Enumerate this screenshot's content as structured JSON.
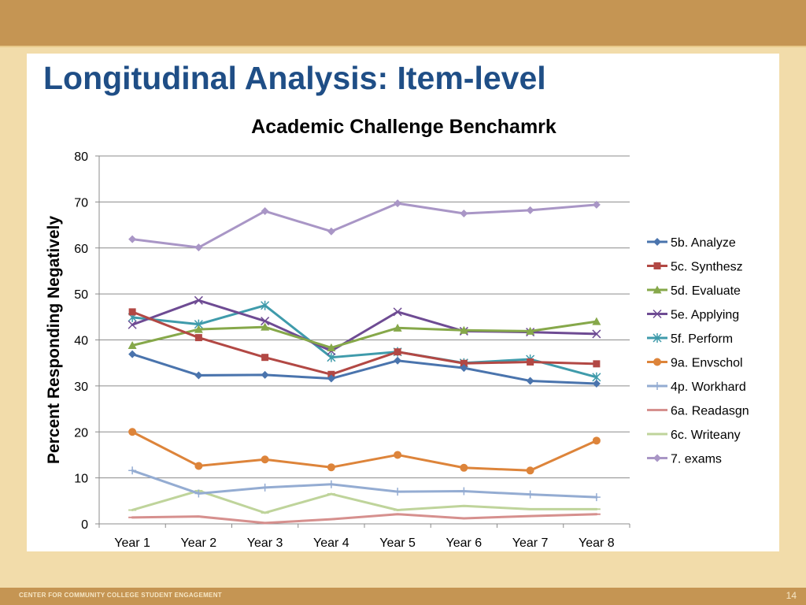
{
  "slide": {
    "title": "Longitudinal Analysis: Item-level",
    "footer": "CENTER FOR COMMUNITY COLLEGE STUDENT ENGAGEMENT",
    "page_number": "14"
  },
  "colors": {
    "band": "#c59553",
    "background": "#f2dcaa",
    "title": "#1f4e86"
  },
  "chart_data": {
    "type": "line",
    "title": "Academic Challenge Benchamrk",
    "xlabel": "",
    "ylabel": "Percent Responding Negatively",
    "ylim": [
      0,
      80
    ],
    "yticks": [
      0,
      10,
      20,
      30,
      40,
      50,
      60,
      70,
      80
    ],
    "grid": true,
    "legend_position": "right",
    "categories": [
      "Year 1",
      "Year 2",
      "Year 3",
      "Year 4",
      "Year 5",
      "Year 6",
      "Year 7",
      "Year 8"
    ],
    "series": [
      {
        "name": "5b. Analyze",
        "color": "#4a74ad",
        "marker": "diamond",
        "values": [
          36.9,
          32.3,
          32.4,
          31.6,
          35.5,
          33.9,
          31.1,
          30.5
        ]
      },
      {
        "name": "5c. Synthesz",
        "color": "#b24844",
        "marker": "square",
        "values": [
          46.1,
          40.5,
          36.2,
          32.5,
          37.4,
          34.9,
          35.2,
          34.8
        ]
      },
      {
        "name": "5d. Evaluate",
        "color": "#86a84a",
        "marker": "triangle",
        "values": [
          38.8,
          42.3,
          42.8,
          38.3,
          42.6,
          42.1,
          41.9,
          44.0
        ]
      },
      {
        "name": "5e. Applying",
        "color": "#6e4b93",
        "marker": "x",
        "values": [
          43.3,
          48.6,
          44.1,
          37.6,
          46.1,
          41.9,
          41.7,
          41.3
        ]
      },
      {
        "name": "5f. Perform",
        "color": "#3f9bab",
        "marker": "star",
        "values": [
          44.9,
          43.4,
          47.5,
          36.2,
          37.4,
          35.0,
          35.8,
          31.9
        ]
      },
      {
        "name": "9a. Envschol",
        "color": "#dd843a",
        "marker": "circle",
        "values": [
          20.0,
          12.6,
          14.0,
          12.3,
          15.0,
          12.2,
          11.6,
          18.1
        ]
      },
      {
        "name": "4p. Workhard",
        "color": "#94acd2",
        "marker": "plus",
        "values": [
          11.6,
          6.6,
          7.9,
          8.6,
          7.0,
          7.1,
          6.4,
          5.8
        ]
      },
      {
        "name": "6a. Readasgn",
        "color": "#d6908e",
        "marker": "dash",
        "values": [
          1.4,
          1.6,
          0.2,
          1.0,
          2.1,
          1.2,
          1.7,
          2.1
        ]
      },
      {
        "name": "6c. Writeany",
        "color": "#bfd49b",
        "marker": "dash",
        "values": [
          3.0,
          7.2,
          2.4,
          6.5,
          3.0,
          3.9,
          3.2,
          3.2
        ]
      },
      {
        "name": "7. exams",
        "color": "#a996c6",
        "marker": "diamond",
        "values": [
          61.9,
          60.1,
          68.0,
          63.6,
          69.7,
          67.5,
          68.2,
          69.4
        ]
      }
    ]
  }
}
